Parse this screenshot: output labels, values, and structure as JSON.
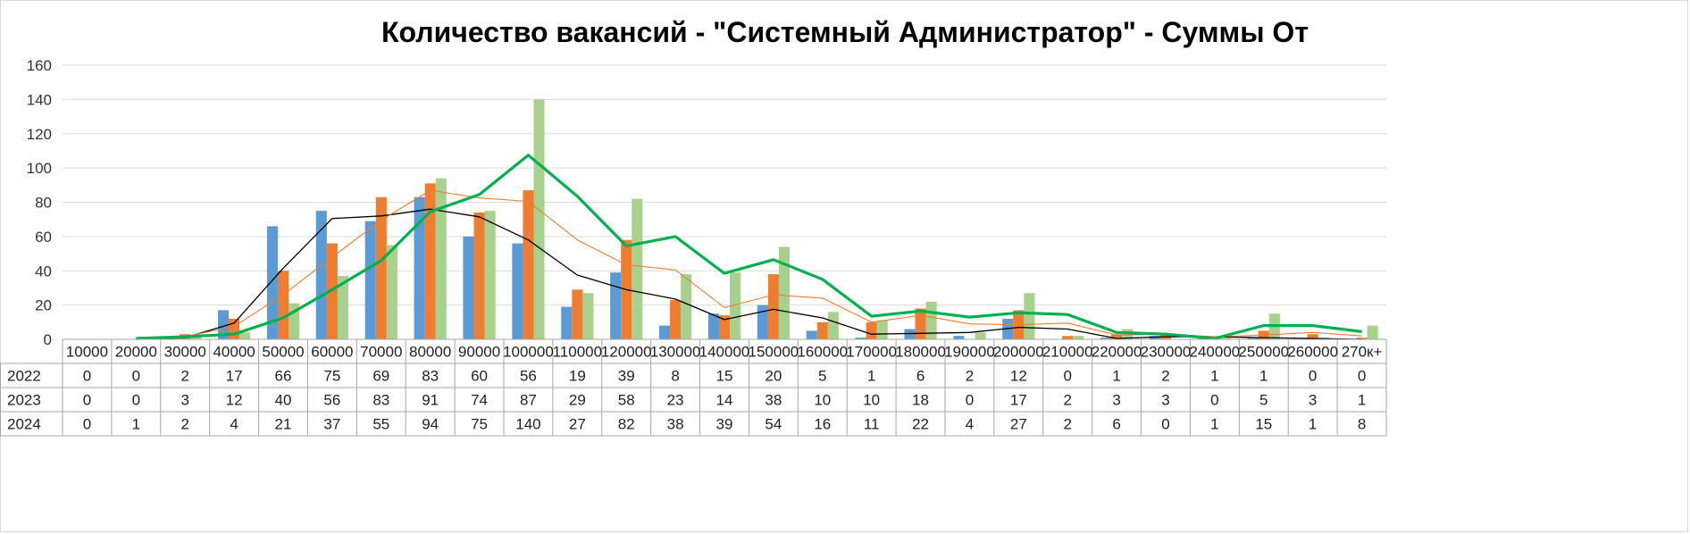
{
  "chart_data": {
    "type": "bar",
    "title": "Количество вакансий - \"Системный Администратор\" - Суммы От",
    "categories": [
      "10000",
      "20000",
      "30000",
      "40000",
      "50000",
      "60000",
      "70000",
      "80000",
      "90000",
      "100000",
      "110000",
      "120000",
      "130000",
      "140000",
      "150000",
      "160000",
      "170000",
      "180000",
      "190000",
      "200000",
      "210000",
      "220000",
      "230000",
      "240000",
      "250000",
      "260000",
      "270к+"
    ],
    "series": [
      {
        "name": "2022",
        "color": "#5b9bd5",
        "values": [
          0,
          0,
          2,
          17,
          66,
          75,
          69,
          83,
          60,
          56,
          19,
          39,
          8,
          15,
          20,
          5,
          1,
          6,
          2,
          12,
          0,
          1,
          2,
          1,
          1,
          0,
          0
        ]
      },
      {
        "name": "2023",
        "color": "#ed7d31",
        "values": [
          0,
          0,
          3,
          12,
          40,
          56,
          83,
          91,
          74,
          87,
          29,
          58,
          23,
          14,
          38,
          10,
          10,
          18,
          0,
          17,
          2,
          3,
          3,
          0,
          5,
          3,
          1
        ]
      },
      {
        "name": "2024",
        "color": "#a9d18e",
        "values": [
          0,
          1,
          2,
          4,
          21,
          37,
          55,
          94,
          75,
          140,
          27,
          82,
          38,
          39,
          54,
          16,
          11,
          22,
          4,
          27,
          2,
          6,
          0,
          1,
          15,
          1,
          8
        ]
      }
    ],
    "trendlines": [
      {
        "color": "#000000",
        "width": 1.3
      },
      {
        "color": "#ed7d31",
        "width": 1.1
      },
      {
        "color": "#00b050",
        "width": 3.2
      }
    ],
    "ylim": [
      0,
      160
    ],
    "yticks": [
      0,
      20,
      40,
      60,
      80,
      100,
      120,
      140,
      160
    ],
    "grid": true,
    "legend": "data-table-left"
  }
}
